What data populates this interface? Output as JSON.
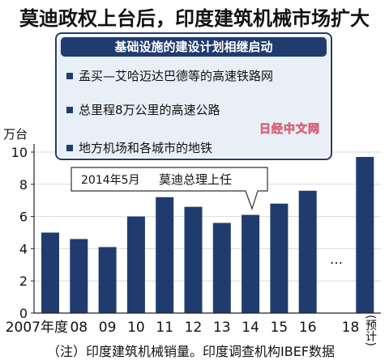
{
  "title": "莫迪政权上台后，印度建筑机械市场扩大",
  "infobox": {
    "heading": "基础设施的建设计划相继启动",
    "items": [
      "孟买—艾哈迈达巴德等的高速铁路网",
      "总里程8万公里的高速公路",
      "地方机场和各城市的地铁"
    ]
  },
  "watermark": "日经中文网",
  "footnote": "（注）印度建筑机械销量。印度调查机构IBEF数据",
  "colors": {
    "bar": "#203c6f",
    "header": "#203c6f",
    "panel": "#e9eff7",
    "grid": "#d9d9d9"
  },
  "chart_data": {
    "type": "bar",
    "title": "",
    "xlabel": "",
    "ylabel": "万台",
    "categories": [
      "2007年度",
      "08",
      "09",
      "10",
      "11",
      "12",
      "13",
      "14",
      "15",
      "16",
      "18"
    ],
    "values": [
      5.0,
      4.6,
      4.1,
      6.0,
      7.2,
      6.6,
      5.6,
      6.1,
      6.8,
      7.6,
      9.7
    ],
    "yticks": [
      0,
      2,
      4,
      6,
      8,
      10
    ],
    "ylim": [
      0,
      10
    ],
    "grid": true,
    "legend": "none",
    "forecast_label": "(预计)",
    "forecast_category": "18",
    "gap_after": "16",
    "gap_marker": "…",
    "callout": {
      "date": "2014年5月",
      "text": "莫迪总理上任",
      "category": "14"
    }
  }
}
